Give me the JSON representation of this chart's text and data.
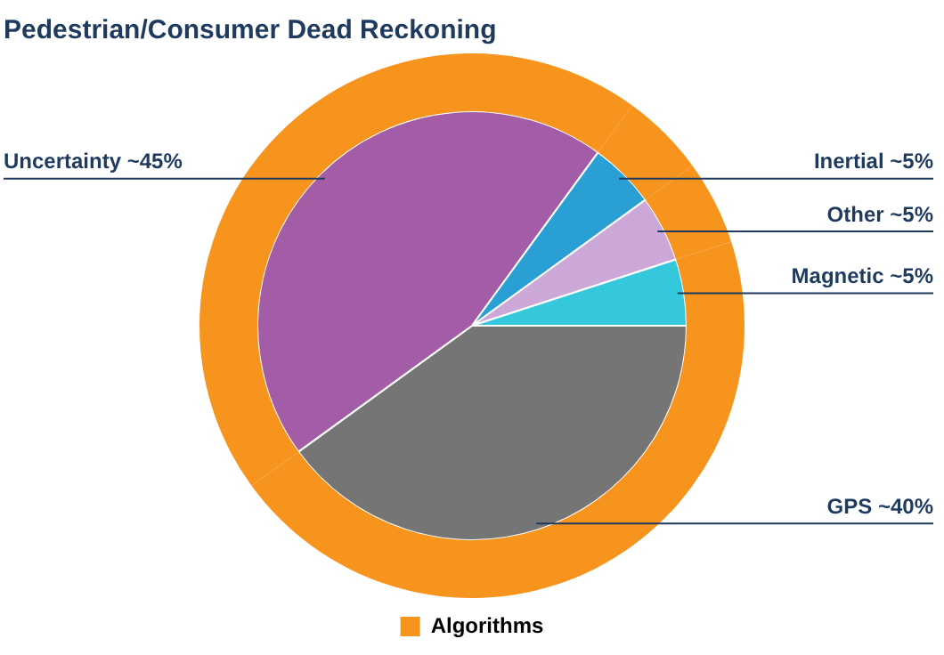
{
  "chart_data": {
    "type": "pie",
    "title": "Pedestrian/Consumer Dead Reckoning",
    "categories": [
      "GPS ~40%",
      "Uncertainty ~45%",
      "Inertial ~5%",
      "Other ~5%",
      "Magnetic ~5%"
    ],
    "series": [
      {
        "name": "Algorithms",
        "color": "#f7941d",
        "values": [
          40,
          45,
          5,
          5,
          5
        ]
      },
      {
        "colors": [
          "#757575",
          "#a35ca6",
          "#2a9fd4",
          "#cba8d8",
          "#35c7dc"
        ],
        "values": [
          40,
          45,
          5,
          5,
          5
        ]
      }
    ],
    "legend": "bottom"
  }
}
